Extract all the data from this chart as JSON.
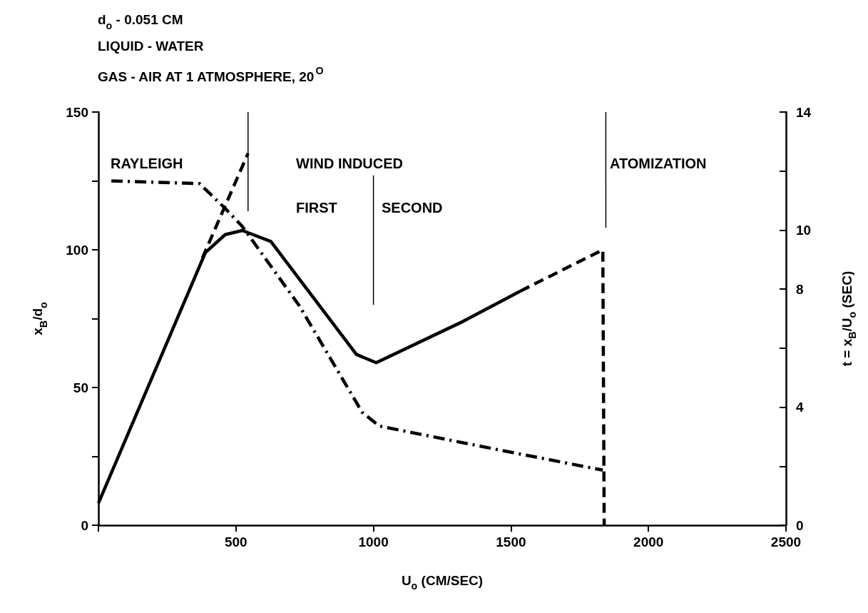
{
  "chart_data": {
    "type": "line",
    "xlabel": "U$_{o}$ (CM/SEC)",
    "ylabel": "x$_{B}$/d$_{o}$",
    "y2label": "t = x$_{B}$/U$_{o}$ (SEC)",
    "xlim": [
      0,
      2500
    ],
    "xticks": [
      {
        "value": 0,
        "label": null
      },
      500,
      1000,
      1500,
      2000,
      2500
    ],
    "ylim": [
      0,
      150
    ],
    "yticks": [
      0,
      {
        "value": 25,
        "label": null
      },
      50,
      {
        "value": 75,
        "label": null
      },
      100,
      {
        "value": 125,
        "label": null
      },
      150
    ],
    "y2lim": [
      0,
      14
    ],
    "y2ticks": [
      0,
      {
        "value": 2,
        "label": null
      },
      4,
      {
        "value": 6,
        "label": null
      },
      8,
      10,
      {
        "value": 12,
        "label": null
      },
      14
    ],
    "grid": false,
    "marker": "none",
    "series": [
      {
        "color": "#000000",
        "line_style": "solid",
        "x": [
          0,
          389,
          461,
          523,
          627,
          938,
          1010,
          1326,
          1534
        ],
        "values": [
          8,
          99,
          105.5,
          107,
          103,
          62,
          59,
          74,
          85
        ]
      },
      {
        "color": "#000000",
        "line_style": "dashed",
        "x": [
          378,
          544
        ],
        "values": [
          97,
          135
        ]
      },
      {
        "color": "#000000",
        "line_style": "dashed",
        "x": [
          1534,
          1834,
          1839
        ],
        "values": [
          85,
          100,
          0
        ]
      },
      {
        "color": "#000000",
        "line_style": "dashdot",
        "x": [
          47,
          368,
          461,
          523,
          731,
          959,
          1021,
          1474,
          1834
        ],
        "values": [
          125,
          124,
          115,
          108.5,
          79.6,
          41,
          36,
          27,
          20
        ]
      },
      {
        "color": "#000000",
        "line_style": "solid",
        "x": [
          544,
          544
        ],
        "values": [
          150,
          114
        ]
      },
      {
        "color": "#000000",
        "line_style": "solid",
        "x": [
          1000,
          1000
        ],
        "values": [
          127,
          80
        ]
      },
      {
        "color": "#000000",
        "line_style": "solid",
        "x": [
          1845,
          1845
        ],
        "values": [
          150,
          108
        ]
      }
    ],
    "annotations": [
      "d$_{o}$ - 0.051 CM",
      "LIQUID - WATER",
      "GAS - AIR AT 1 ATMOSPHERE, 20$^{O}$",
      "RAYLEIGH",
      "WIND INDUCED",
      "FIRST",
      "SECOND",
      "ATOMIZATION"
    ]
  }
}
